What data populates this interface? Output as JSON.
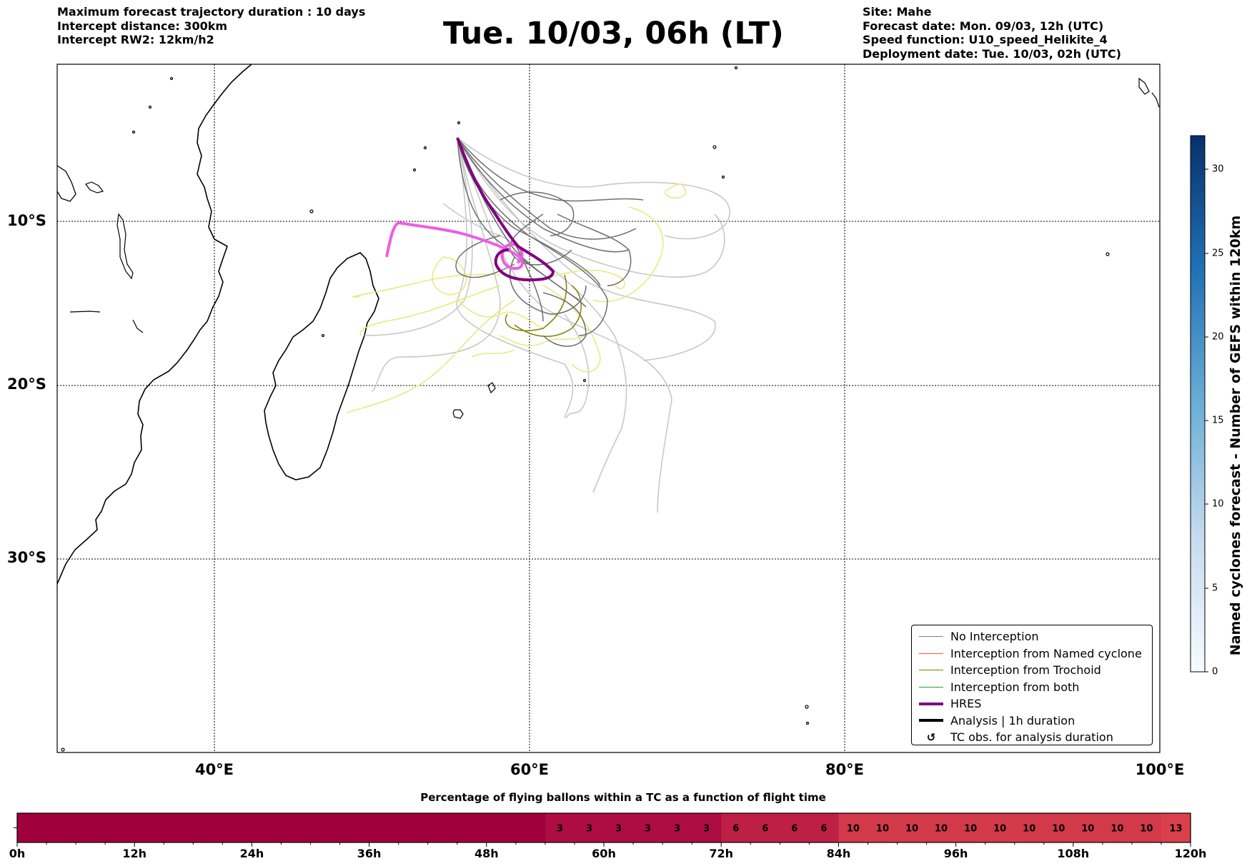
{
  "header": {
    "info_left": [
      "Maximum forecast trajectory duration : 10 days",
      "Intercept distance: 300km",
      "Intercept RW2: 12km/h2"
    ],
    "title": "Tue. 10/03, 06h (LT)",
    "info_right": [
      "Site: Mahe",
      "Forecast date: Mon. 09/03, 12h (UTC)",
      "Speed function: U10_speed_Helikite_4",
      "Deployment date: Tue. 10/03, 02h (UTC)"
    ]
  },
  "map": {
    "lat_labels": [
      "10°S",
      "20°S",
      "30°S"
    ],
    "lon_labels": [
      "40°E",
      "60°E",
      "80°E",
      "100°E"
    ],
    "gridlines": "dotted"
  },
  "legend": {
    "items": [
      {
        "label": "No Interception",
        "color": "#808080"
      },
      {
        "label": "Interception from Named cyclone",
        "color": "#ff5a1f"
      },
      {
        "label": "Interception from Trochoid",
        "color": "#808000"
      },
      {
        "label": "Interception from both",
        "color": "#2ca02c"
      },
      {
        "label": "HRES",
        "color": "#800080"
      },
      {
        "label": "Analysis | 1h duration",
        "color": "#000000"
      },
      {
        "label": "TC obs. for analysis duration",
        "icon": "cyclone-symbol-icon"
      }
    ],
    "placement": "bottom-right"
  },
  "colorbar": {
    "label": "Named cyclones forecast - Number of GEFS within 120km",
    "ticks": [
      "0",
      "5",
      "10",
      "15",
      "20",
      "25",
      "30"
    ],
    "colormap": "Blues",
    "range": [
      0,
      32
    ]
  },
  "chart_data": {
    "type": "heatmap",
    "title": "Percentage of flying ballons within a TC as a function of flight time",
    "x_tick_labels": [
      "0h",
      "12h",
      "24h",
      "36h",
      "48h",
      "60h",
      "72h",
      "84h",
      "96h",
      "108h",
      "120h"
    ],
    "x_range": [
      0,
      120
    ],
    "bin_hours": 3,
    "values": [
      0,
      0,
      0,
      0,
      0,
      0,
      0,
      0,
      0,
      0,
      0,
      0,
      0,
      0,
      0,
      0,
      0,
      0,
      3,
      3,
      3,
      3,
      3,
      3,
      6,
      6,
      6,
      6,
      10,
      10,
      10,
      10,
      10,
      10,
      10,
      10,
      10,
      10,
      10,
      13
    ],
    "shown_labels_from_bin": 18
  }
}
